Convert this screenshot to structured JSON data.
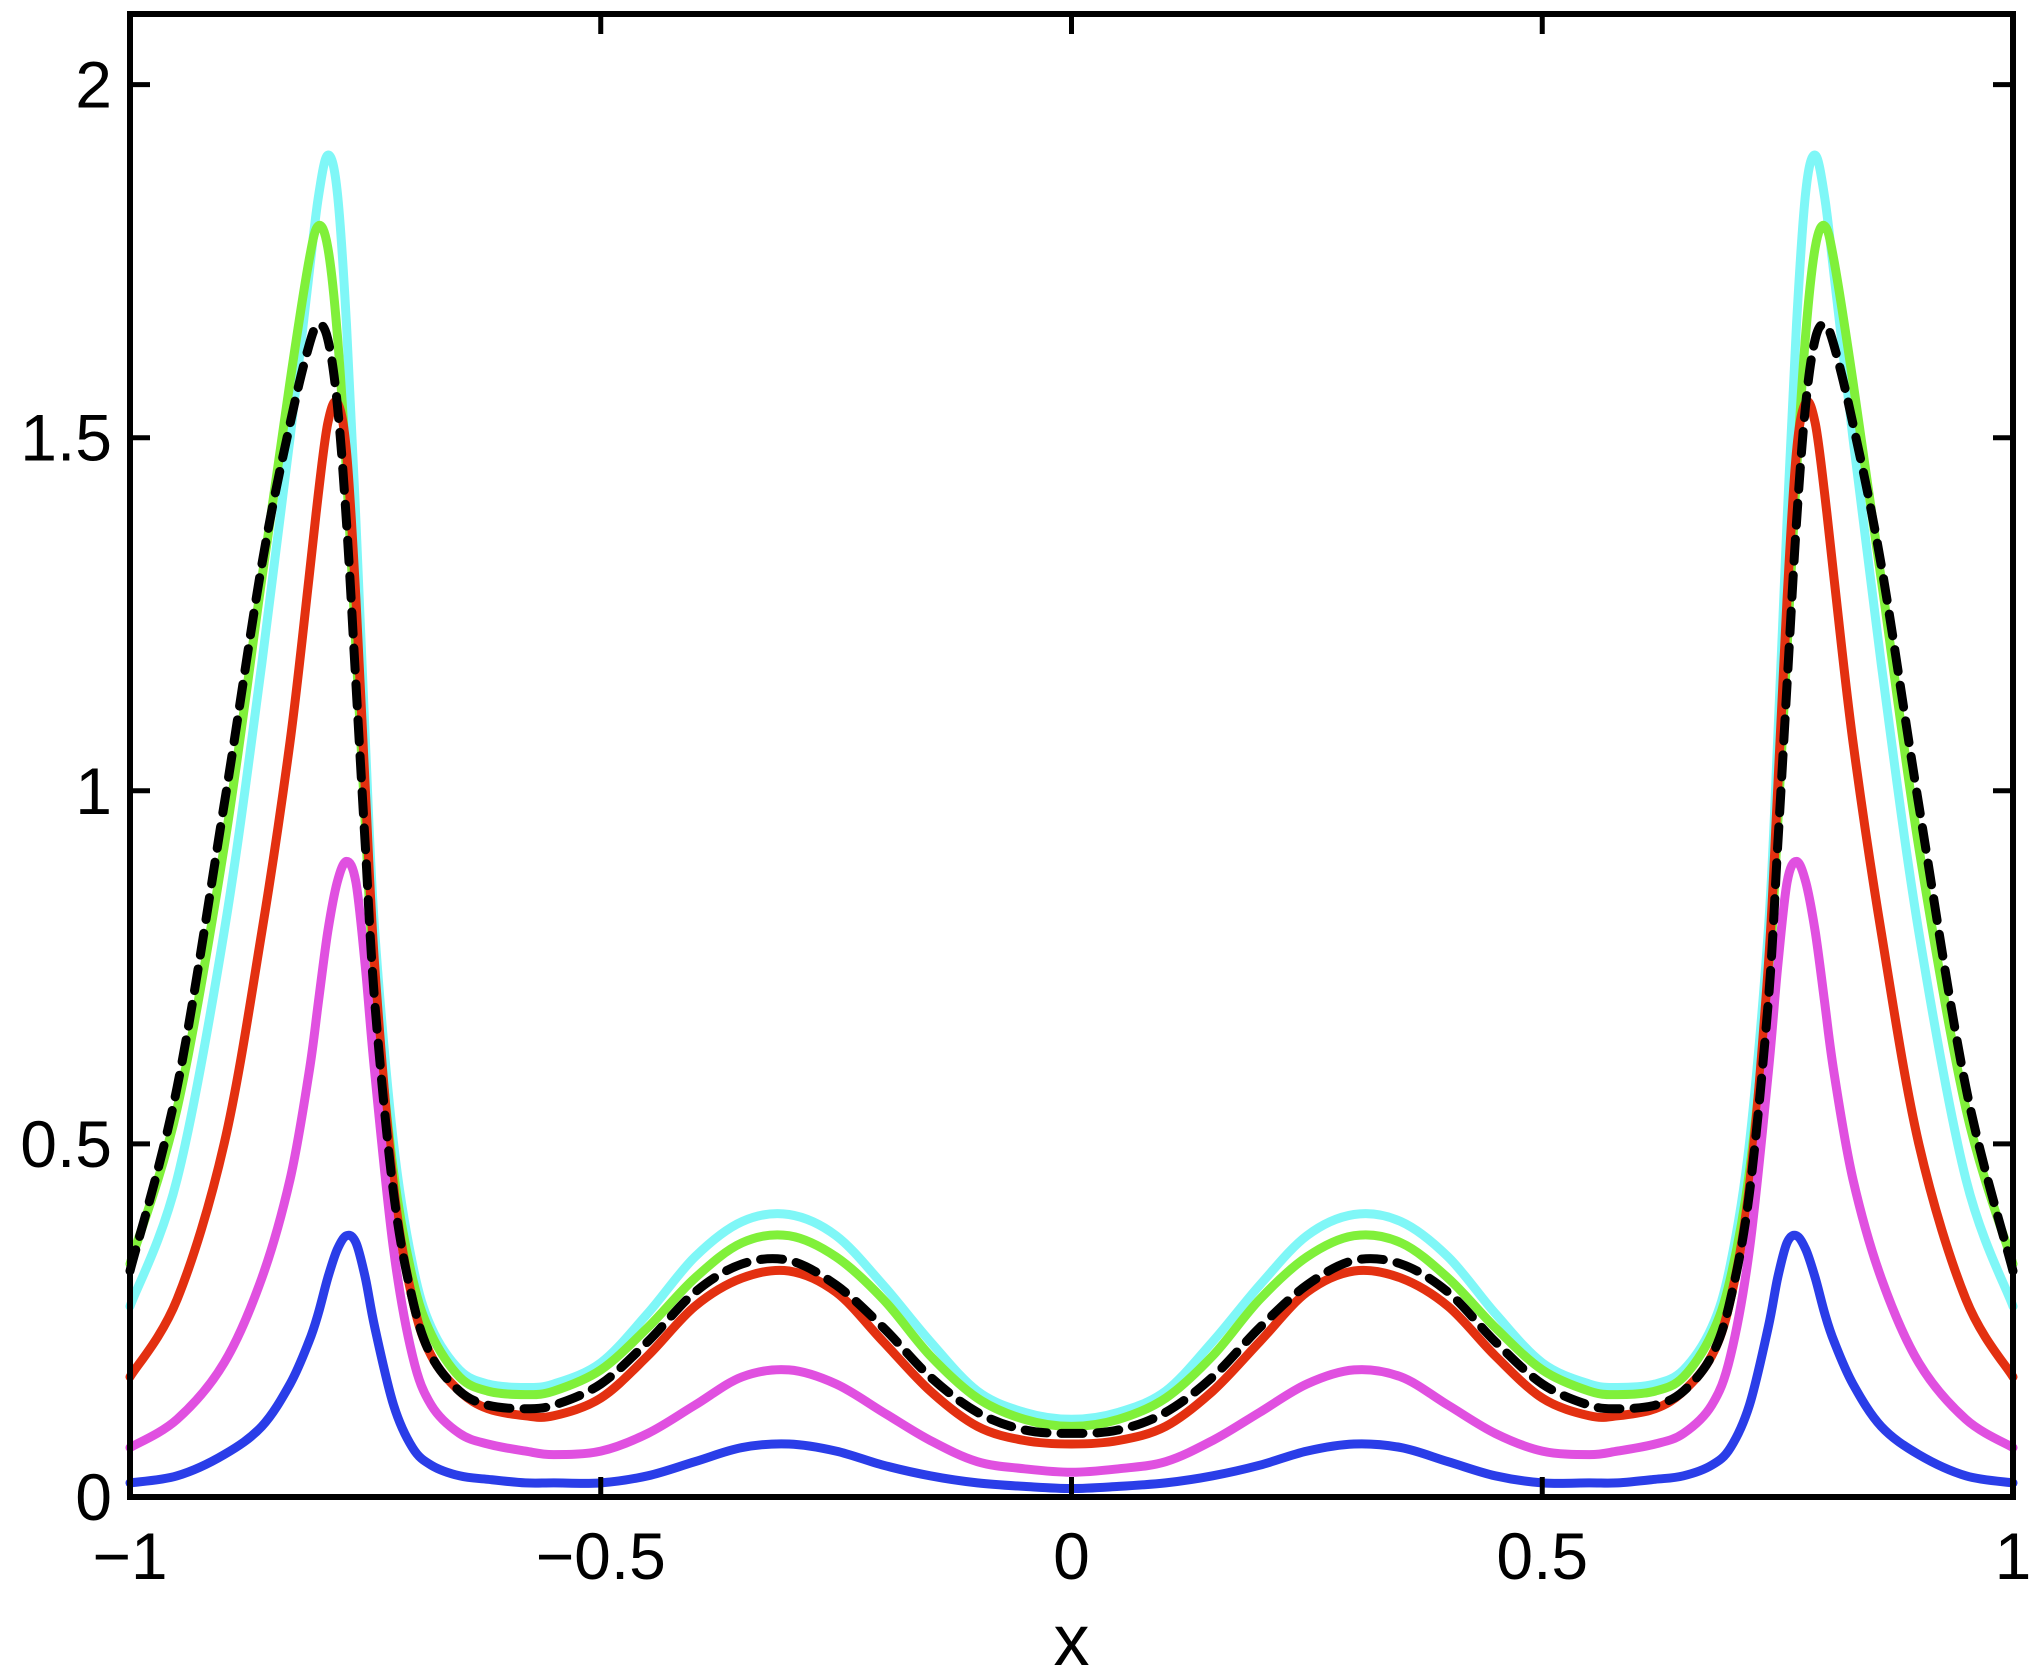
{
  "chart_data": {
    "type": "line",
    "title": "",
    "xlabel": "x",
    "ylabel": "",
    "xlim": [
      -1,
      1
    ],
    "ylim": [
      0,
      2.1
    ],
    "xticks": [
      -1,
      -0.5,
      0,
      0.5,
      1
    ],
    "yticks": [
      0,
      0.5,
      1,
      1.5,
      2
    ],
    "xtick_labels": [
      "−1",
      "−0.5",
      "0",
      "0.5",
      "1"
    ],
    "ytick_labels": [
      "0",
      "0.5",
      "1",
      "1.5",
      "2"
    ],
    "grid": false,
    "legend": "none",
    "series": [
      {
        "color": "#7ff7f7",
        "dash": false,
        "x": [
          -1,
          -0.95,
          -0.9,
          -0.86,
          -0.83,
          -0.81,
          -0.8,
          -0.79,
          -0.78,
          -0.77,
          -0.76,
          -0.75,
          -0.74,
          -0.72,
          -0.7,
          -0.68,
          -0.65,
          -0.62,
          -0.58,
          -0.55,
          -0.5,
          -0.45,
          -0.4,
          -0.35,
          -0.3,
          -0.25,
          -0.2,
          -0.15,
          -0.1,
          -0.05,
          0,
          0.05,
          0.1,
          0.15,
          0.2,
          0.25,
          0.3,
          0.35,
          0.4,
          0.45,
          0.5,
          0.55,
          0.58,
          0.62,
          0.65,
          0.68,
          0.7,
          0.72,
          0.74,
          0.75,
          0.76,
          0.77,
          0.78,
          0.79,
          0.8,
          0.81,
          0.83,
          0.86,
          0.9,
          0.95,
          1
        ],
        "y": [
          0.27,
          0.45,
          0.8,
          1.18,
          1.5,
          1.73,
          1.84,
          1.9,
          1.85,
          1.66,
          1.38,
          1.07,
          0.8,
          0.5,
          0.33,
          0.24,
          0.18,
          0.16,
          0.155,
          0.16,
          0.19,
          0.26,
          0.34,
          0.39,
          0.4,
          0.37,
          0.3,
          0.22,
          0.15,
          0.12,
          0.11,
          0.12,
          0.15,
          0.22,
          0.3,
          0.37,
          0.4,
          0.39,
          0.34,
          0.26,
          0.19,
          0.16,
          0.155,
          0.16,
          0.18,
          0.24,
          0.33,
          0.5,
          0.8,
          1.07,
          1.38,
          1.66,
          1.85,
          1.9,
          1.84,
          1.73,
          1.5,
          1.18,
          0.8,
          0.45,
          0.27
        ]
      },
      {
        "color": "#80f03a",
        "dash": false,
        "x": [
          -1,
          -0.95,
          -0.9,
          -0.86,
          -0.83,
          -0.81,
          -0.8,
          -0.79,
          -0.78,
          -0.77,
          -0.76,
          -0.75,
          -0.74,
          -0.72,
          -0.7,
          -0.68,
          -0.65,
          -0.62,
          -0.58,
          -0.55,
          -0.5,
          -0.45,
          -0.4,
          -0.35,
          -0.3,
          -0.25,
          -0.2,
          -0.15,
          -0.1,
          -0.05,
          0,
          0.05,
          0.1,
          0.15,
          0.2,
          0.25,
          0.3,
          0.35,
          0.4,
          0.45,
          0.5,
          0.55,
          0.58,
          0.62,
          0.65,
          0.68,
          0.7,
          0.72,
          0.74,
          0.75,
          0.76,
          0.77,
          0.78,
          0.79,
          0.8,
          0.81,
          0.83,
          0.86,
          0.9,
          0.95,
          1
        ],
        "y": [
          0.33,
          0.55,
          0.92,
          1.3,
          1.58,
          1.75,
          1.8,
          1.77,
          1.65,
          1.45,
          1.2,
          0.95,
          0.72,
          0.46,
          0.31,
          0.23,
          0.17,
          0.15,
          0.145,
          0.15,
          0.18,
          0.24,
          0.31,
          0.36,
          0.37,
          0.34,
          0.28,
          0.2,
          0.14,
          0.11,
          0.1,
          0.11,
          0.14,
          0.2,
          0.28,
          0.34,
          0.37,
          0.36,
          0.31,
          0.24,
          0.18,
          0.15,
          0.145,
          0.15,
          0.17,
          0.23,
          0.31,
          0.46,
          0.72,
          0.95,
          1.2,
          1.45,
          1.65,
          1.77,
          1.8,
          1.75,
          1.58,
          1.3,
          0.92,
          0.55,
          0.33
        ]
      },
      {
        "color": "#e33010",
        "dash": false,
        "x": [
          -1,
          -0.95,
          -0.9,
          -0.86,
          -0.83,
          -0.81,
          -0.8,
          -0.79,
          -0.78,
          -0.77,
          -0.76,
          -0.75,
          -0.74,
          -0.72,
          -0.7,
          -0.68,
          -0.65,
          -0.62,
          -0.58,
          -0.55,
          -0.5,
          -0.45,
          -0.4,
          -0.35,
          -0.3,
          -0.25,
          -0.2,
          -0.15,
          -0.1,
          -0.05,
          0,
          0.05,
          0.1,
          0.15,
          0.2,
          0.25,
          0.3,
          0.35,
          0.4,
          0.45,
          0.5,
          0.55,
          0.58,
          0.62,
          0.65,
          0.68,
          0.7,
          0.72,
          0.74,
          0.75,
          0.76,
          0.77,
          0.78,
          0.79,
          0.8,
          0.81,
          0.83,
          0.86,
          0.9,
          0.95,
          1
        ],
        "y": [
          0.17,
          0.28,
          0.5,
          0.8,
          1.07,
          1.3,
          1.42,
          1.52,
          1.55,
          1.48,
          1.27,
          1.0,
          0.75,
          0.44,
          0.28,
          0.2,
          0.15,
          0.125,
          0.115,
          0.115,
          0.14,
          0.2,
          0.27,
          0.31,
          0.32,
          0.29,
          0.22,
          0.15,
          0.1,
          0.08,
          0.075,
          0.08,
          0.1,
          0.15,
          0.22,
          0.29,
          0.32,
          0.31,
          0.27,
          0.2,
          0.14,
          0.115,
          0.115,
          0.125,
          0.15,
          0.2,
          0.28,
          0.44,
          0.75,
          1.0,
          1.27,
          1.48,
          1.55,
          1.52,
          1.42,
          1.3,
          1.07,
          0.8,
          0.5,
          0.28,
          0.17
        ]
      },
      {
        "color": "#e050e0",
        "dash": false,
        "x": [
          -1,
          -0.95,
          -0.9,
          -0.86,
          -0.83,
          -0.81,
          -0.8,
          -0.79,
          -0.78,
          -0.77,
          -0.76,
          -0.75,
          -0.74,
          -0.72,
          -0.7,
          -0.68,
          -0.65,
          -0.62,
          -0.58,
          -0.55,
          -0.5,
          -0.45,
          -0.4,
          -0.35,
          -0.3,
          -0.25,
          -0.2,
          -0.15,
          -0.1,
          -0.05,
          0,
          0.05,
          0.1,
          0.15,
          0.2,
          0.25,
          0.3,
          0.35,
          0.4,
          0.45,
          0.5,
          0.55,
          0.58,
          0.62,
          0.65,
          0.68,
          0.7,
          0.72,
          0.74,
          0.75,
          0.76,
          0.77,
          0.78,
          0.79,
          0.8,
          0.81,
          0.83,
          0.86,
          0.9,
          0.95,
          1
        ],
        "y": [
          0.07,
          0.11,
          0.19,
          0.31,
          0.45,
          0.6,
          0.7,
          0.8,
          0.87,
          0.9,
          0.87,
          0.75,
          0.6,
          0.35,
          0.2,
          0.13,
          0.09,
          0.075,
          0.065,
          0.06,
          0.065,
          0.09,
          0.13,
          0.17,
          0.18,
          0.16,
          0.12,
          0.08,
          0.05,
          0.04,
          0.035,
          0.04,
          0.05,
          0.08,
          0.12,
          0.16,
          0.18,
          0.17,
          0.13,
          0.09,
          0.065,
          0.06,
          0.065,
          0.075,
          0.09,
          0.13,
          0.2,
          0.35,
          0.6,
          0.75,
          0.87,
          0.9,
          0.87,
          0.8,
          0.7,
          0.6,
          0.45,
          0.31,
          0.19,
          0.11,
          0.07
        ]
      },
      {
        "color": "#2a3de8",
        "dash": false,
        "x": [
          -1,
          -0.95,
          -0.9,
          -0.86,
          -0.83,
          -0.81,
          -0.8,
          -0.79,
          -0.78,
          -0.77,
          -0.76,
          -0.75,
          -0.74,
          -0.72,
          -0.7,
          -0.68,
          -0.65,
          -0.62,
          -0.58,
          -0.55,
          -0.5,
          -0.45,
          -0.4,
          -0.35,
          -0.3,
          -0.25,
          -0.2,
          -0.15,
          -0.1,
          -0.05,
          0,
          0.05,
          0.1,
          0.15,
          0.2,
          0.25,
          0.3,
          0.35,
          0.4,
          0.45,
          0.5,
          0.55,
          0.58,
          0.62,
          0.65,
          0.68,
          0.7,
          0.72,
          0.74,
          0.75,
          0.76,
          0.77,
          0.78,
          0.79,
          0.8,
          0.81,
          0.83,
          0.86,
          0.9,
          0.95,
          1
        ],
        "y": [
          0.02,
          0.03,
          0.06,
          0.1,
          0.16,
          0.22,
          0.26,
          0.31,
          0.35,
          0.37,
          0.36,
          0.31,
          0.24,
          0.13,
          0.07,
          0.045,
          0.03,
          0.025,
          0.02,
          0.02,
          0.02,
          0.03,
          0.05,
          0.07,
          0.075,
          0.065,
          0.045,
          0.03,
          0.02,
          0.015,
          0.012,
          0.015,
          0.02,
          0.03,
          0.045,
          0.065,
          0.075,
          0.07,
          0.05,
          0.03,
          0.02,
          0.02,
          0.02,
          0.025,
          0.03,
          0.045,
          0.07,
          0.13,
          0.24,
          0.31,
          0.36,
          0.37,
          0.35,
          0.31,
          0.26,
          0.22,
          0.16,
          0.1,
          0.06,
          0.03,
          0.02
        ]
      },
      {
        "color": "#000000",
        "dash": true,
        "x": [
          -1,
          -0.95,
          -0.9,
          -0.86,
          -0.83,
          -0.81,
          -0.8,
          -0.79,
          -0.78,
          -0.77,
          -0.76,
          -0.75,
          -0.74,
          -0.72,
          -0.7,
          -0.68,
          -0.65,
          -0.62,
          -0.58,
          -0.55,
          -0.5,
          -0.45,
          -0.4,
          -0.35,
          -0.3,
          -0.25,
          -0.2,
          -0.15,
          -0.1,
          -0.05,
          0,
          0.05,
          0.1,
          0.15,
          0.2,
          0.25,
          0.3,
          0.35,
          0.4,
          0.45,
          0.5,
          0.55,
          0.58,
          0.62,
          0.65,
          0.68,
          0.7,
          0.72,
          0.74,
          0.75,
          0.76,
          0.77,
          0.78,
          0.79,
          0.8,
          0.81,
          0.83,
          0.86,
          0.9,
          0.95,
          1
        ],
        "y": [
          0.32,
          0.58,
          0.98,
          1.32,
          1.52,
          1.63,
          1.66,
          1.64,
          1.55,
          1.38,
          1.15,
          0.92,
          0.7,
          0.43,
          0.28,
          0.2,
          0.15,
          0.13,
          0.125,
          0.13,
          0.16,
          0.22,
          0.29,
          0.33,
          0.335,
          0.3,
          0.24,
          0.17,
          0.12,
          0.095,
          0.09,
          0.095,
          0.12,
          0.17,
          0.24,
          0.3,
          0.335,
          0.33,
          0.29,
          0.22,
          0.16,
          0.13,
          0.125,
          0.13,
          0.15,
          0.2,
          0.28,
          0.43,
          0.7,
          0.92,
          1.15,
          1.38,
          1.55,
          1.64,
          1.66,
          1.63,
          1.52,
          1.32,
          0.98,
          0.58,
          0.32
        ]
      }
    ]
  }
}
